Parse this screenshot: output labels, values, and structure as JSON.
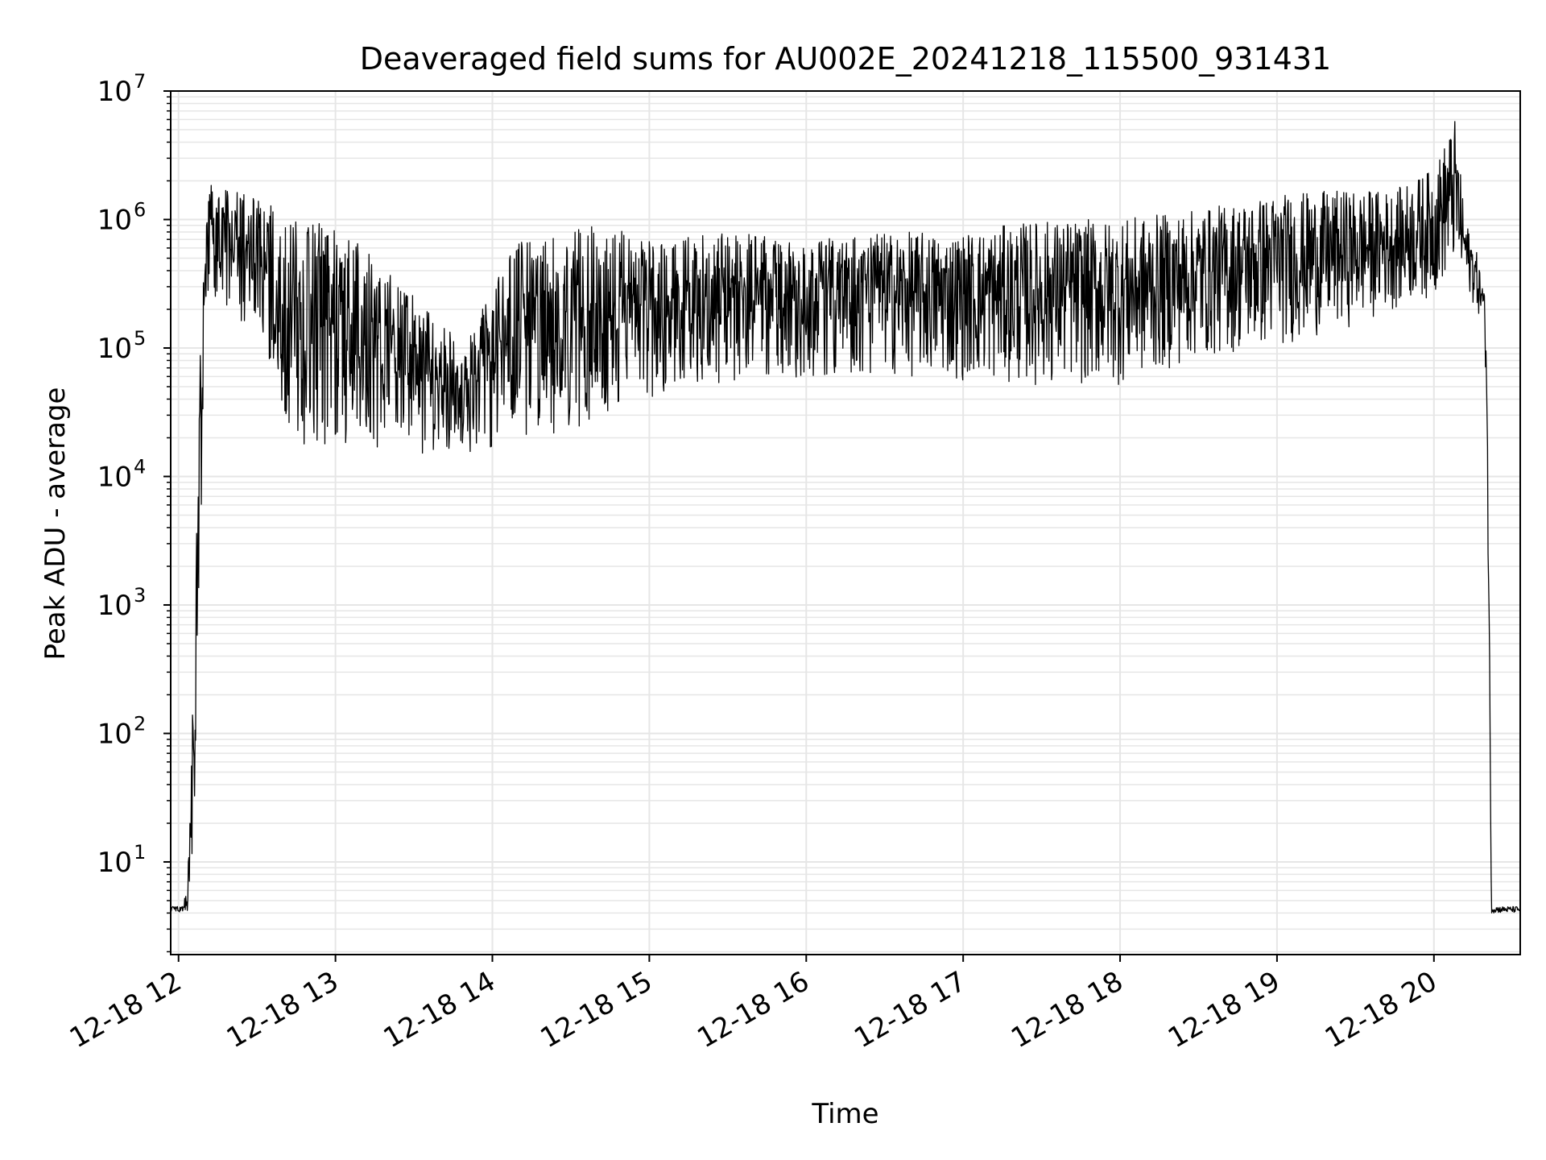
{
  "chart_data": {
    "type": "line",
    "title": "Deaveraged field sums for AU002E_20241218_115500_931431",
    "xlabel": "Time",
    "ylabel": "Peak ADU - average",
    "x_scale": "time",
    "y_scale": "log",
    "xlim": [
      "2024-12-18 11:57",
      "2024-12-18 20:33"
    ],
    "ylim": [
      1.9,
      10000000
    ],
    "grid": true,
    "line_color": "#000000",
    "grid_color": "#e6e6e6",
    "x_ticks": [
      {
        "value": "2024-12-18 12:00",
        "label": "12-18 12"
      },
      {
        "value": "2024-12-18 13:00",
        "label": "12-18 13"
      },
      {
        "value": "2024-12-18 14:00",
        "label": "12-18 14"
      },
      {
        "value": "2024-12-18 15:00",
        "label": "12-18 15"
      },
      {
        "value": "2024-12-18 16:00",
        "label": "12-18 16"
      },
      {
        "value": "2024-12-18 17:00",
        "label": "12-18 17"
      },
      {
        "value": "2024-12-18 18:00",
        "label": "12-18 18"
      },
      {
        "value": "2024-12-18 19:00",
        "label": "12-18 19"
      },
      {
        "value": "2024-12-18 20:00",
        "label": "12-18 20"
      }
    ],
    "y_ticks": [
      {
        "value": 10,
        "base": "10",
        "exp": "1"
      },
      {
        "value": 100,
        "base": "10",
        "exp": "2"
      },
      {
        "value": 1000,
        "base": "10",
        "exp": "3"
      },
      {
        "value": 10000,
        "base": "10",
        "exp": "4"
      },
      {
        "value": 100000,
        "base": "10",
        "exp": "5"
      },
      {
        "value": 1000000,
        "base": "10",
        "exp": "6"
      },
      {
        "value": 10000000,
        "base": "10",
        "exp": "7"
      }
    ],
    "series": [
      {
        "color": "#000000",
        "x": [
          "2024-12-18 11:57",
          "2024-12-18 12:00",
          "2024-12-18 12:02",
          "2024-12-18 12:04",
          "2024-12-18 12:06",
          "2024-12-18 12:08",
          "2024-12-18 12:10",
          "2024-12-18 12:12",
          "2024-12-18 12:15",
          "2024-12-18 12:20",
          "2024-12-18 12:30",
          "2024-12-18 12:40",
          "2024-12-18 12:50",
          "2024-12-18 13:00",
          "2024-12-18 13:10",
          "2024-12-18 13:20",
          "2024-12-18 13:30",
          "2024-12-18 13:40",
          "2024-12-18 13:50",
          "2024-12-18 14:00",
          "2024-12-18 14:10",
          "2024-12-18 14:20",
          "2024-12-18 14:30",
          "2024-12-18 14:45",
          "2024-12-18 15:00",
          "2024-12-18 15:30",
          "2024-12-18 16:00",
          "2024-12-18 16:30",
          "2024-12-18 17:00",
          "2024-12-18 17:30",
          "2024-12-18 18:00",
          "2024-12-18 18:30",
          "2024-12-18 19:00",
          "2024-12-18 19:30",
          "2024-12-18 19:45",
          "2024-12-18 20:00",
          "2024-12-18 20:08",
          "2024-12-18 20:12",
          "2024-12-18 20:16",
          "2024-12-18 20:19",
          "2024-12-18 20:20",
          "2024-12-18 20:21",
          "2024-12-18 20:22",
          "2024-12-18 20:23",
          "2024-12-18 20:33"
        ],
        "low": [
          4,
          4,
          4,
          4,
          20,
          1000,
          100000,
          200000,
          200000,
          150000,
          150000,
          30000,
          15000,
          18000,
          18000,
          16000,
          15000,
          15000,
          15000,
          16000,
          17000,
          18000,
          22000,
          30000,
          40000,
          55000,
          60000,
          60000,
          55000,
          50000,
          50000,
          80000,
          100000,
          150000,
          200000,
          250000,
          400000,
          300000,
          200000,
          150000,
          50000,
          500,
          4,
          4,
          4
        ],
        "high": [
          4.5,
          4.5,
          4.5,
          12,
          500,
          100000,
          1000000,
          2000000,
          1800000,
          1700000,
          1600000,
          1100000,
          950000,
          900000,
          700000,
          400000,
          250000,
          150000,
          110000,
          300000,
          700000,
          700000,
          900000,
          1000000,
          700000,
          800000,
          700000,
          800000,
          800000,
          1000000,
          1000000,
          1200000,
          1600000,
          1700000,
          1700000,
          2500000,
          6000000,
          1000000,
          600000,
          300000,
          200000,
          3000,
          4.5,
          4.5,
          4.5
        ]
      }
    ]
  }
}
